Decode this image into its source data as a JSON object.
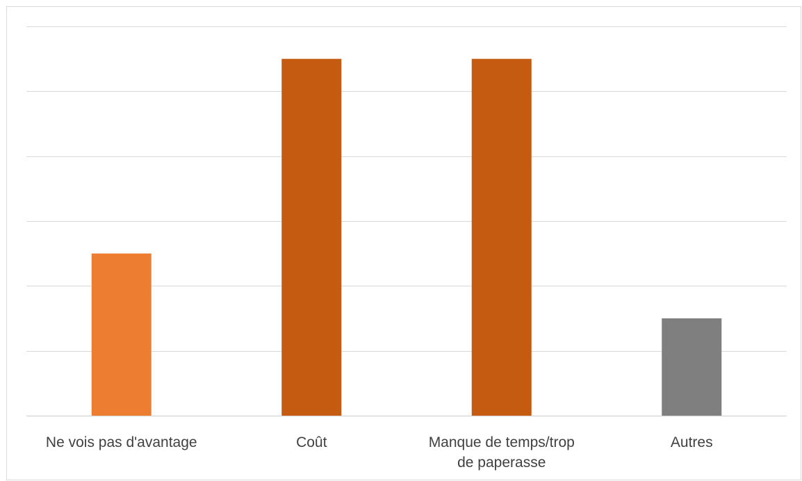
{
  "chart_data": {
    "type": "bar",
    "categories": [
      [
        "Ne vois pas d'avantage"
      ],
      [
        "Coût"
      ],
      [
        "Manque de temps/trop",
        "de paperasse"
      ],
      [
        "Autres"
      ]
    ],
    "category_labels": [
      "Ne vois pas d'avantage",
      "Coût",
      "Manque de temps/trop de paperasse",
      "Autres"
    ],
    "values": [
      2.5,
      5.5,
      5.5,
      1.5
    ],
    "colors": [
      "#ED7D31",
      "#C55A11",
      "#C55A11",
      "#7F7F7F"
    ],
    "ylim": [
      0,
      6
    ],
    "grid": true,
    "gridline_color": "#d9d9d9",
    "title": "",
    "xlabel": "",
    "ylabel": ""
  }
}
